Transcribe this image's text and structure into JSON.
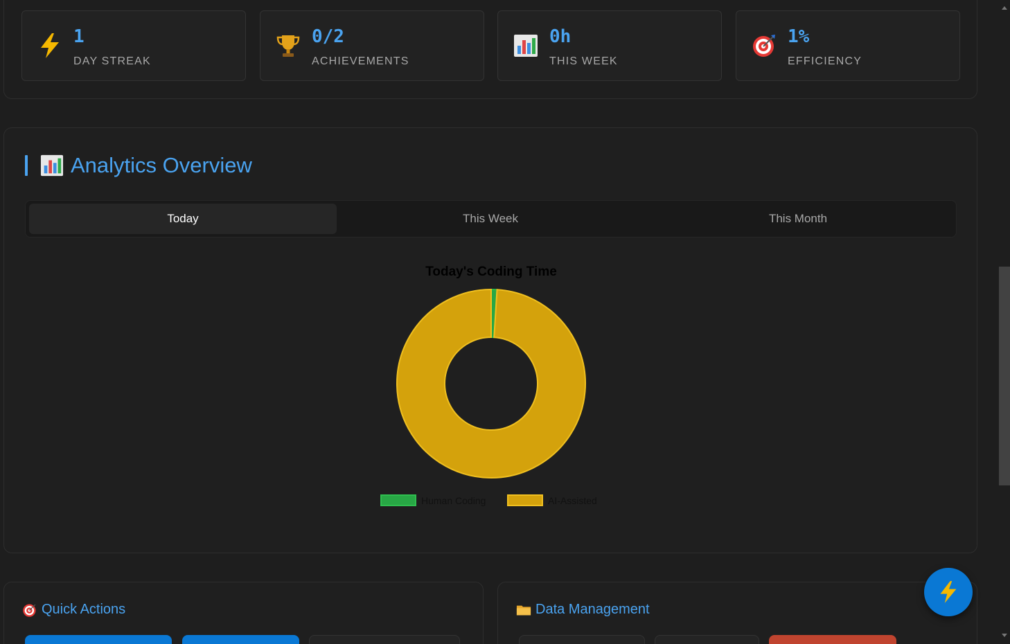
{
  "stats": [
    {
      "icon": "lightning-icon",
      "value": "1",
      "label": "DAY STREAK"
    },
    {
      "icon": "trophy-icon",
      "value": "0/2",
      "label": "ACHIEVEMENTS"
    },
    {
      "icon": "bar-chart-icon",
      "value": "0h",
      "label": "THIS WEEK"
    },
    {
      "icon": "target-icon",
      "value": "1%",
      "label": "EFFICIENCY"
    }
  ],
  "analytics": {
    "title": "Analytics Overview",
    "tabs": [
      {
        "label": "Today",
        "active": true
      },
      {
        "label": "This Week",
        "active": false
      },
      {
        "label": "This Month",
        "active": false
      }
    ]
  },
  "chart_data": {
    "type": "pie",
    "title": "Today's Coding Time",
    "categories": [
      "Human Coding",
      "AI-Assisted"
    ],
    "values": [
      1,
      99
    ],
    "colors": [
      "#28a745",
      "#d4a20c"
    ],
    "legend_position": "bottom"
  },
  "quick_actions": {
    "title": "Quick Actions",
    "icon": "target-icon"
  },
  "data_management": {
    "title": "Data Management",
    "icon": "folder-icon"
  },
  "colors": {
    "accent": "#4aa3f0",
    "background": "#1e1e1e",
    "fab": "#0a78d4",
    "danger": "#c0442f"
  },
  "fab": {
    "icon": "lightning-icon"
  }
}
